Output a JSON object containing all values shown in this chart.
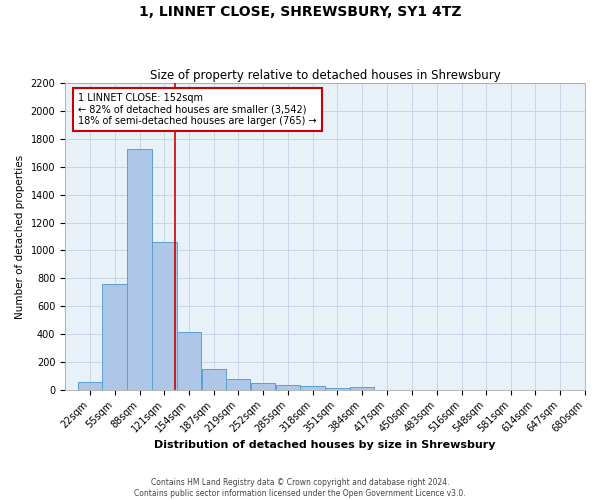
{
  "title": "1, LINNET CLOSE, SHREWSBURY, SY1 4TZ",
  "subtitle": "Size of property relative to detached houses in Shrewsbury",
  "xlabel": "Distribution of detached houses by size in Shrewsbury",
  "ylabel": "Number of detached properties",
  "footnote1": "Contains HM Land Registry data © Crown copyright and database right 2024.",
  "footnote2": "Contains public sector information licensed under the Open Government Licence v3.0.",
  "bin_labels": [
    "22sqm",
    "55sqm",
    "88sqm",
    "121sqm",
    "154sqm",
    "187sqm",
    "219sqm",
    "252sqm",
    "285sqm",
    "318sqm",
    "351sqm",
    "384sqm",
    "417sqm",
    "450sqm",
    "483sqm",
    "516sqm",
    "548sqm",
    "581sqm",
    "614sqm",
    "647sqm",
    "680sqm"
  ],
  "bin_edges": [
    22,
    55,
    88,
    121,
    154,
    187,
    219,
    252,
    285,
    318,
    351,
    384,
    417,
    450,
    483,
    516,
    548,
    581,
    614,
    647,
    680
  ],
  "bar_heights": [
    55,
    760,
    1730,
    1060,
    415,
    150,
    80,
    45,
    35,
    25,
    15,
    20,
    0,
    0,
    0,
    0,
    0,
    0,
    0,
    0
  ],
  "bar_color": "#aec6e8",
  "bar_edge_color": "#5a9fd4",
  "property_value": 152,
  "annotation_line1": "1 LINNET CLOSE: 152sqm",
  "annotation_line2": "← 82% of detached houses are smaller (3,542)",
  "annotation_line3": "18% of semi-detached houses are larger (765) →",
  "annotation_box_color": "#ffffff",
  "annotation_border_color": "#cc0000",
  "ylim": [
    0,
    2200
  ],
  "yticks": [
    0,
    200,
    400,
    600,
    800,
    1000,
    1200,
    1400,
    1600,
    1800,
    2000,
    2200
  ],
  "grid_color": "#c5d5e8",
  "background_color": "#e8f0f8",
  "title_fontsize": 10,
  "subtitle_fontsize": 8.5,
  "xlabel_fontsize": 8,
  "ylabel_fontsize": 7.5,
  "tick_fontsize": 7,
  "annotation_fontsize": 7,
  "footnote_fontsize": 5.5
}
